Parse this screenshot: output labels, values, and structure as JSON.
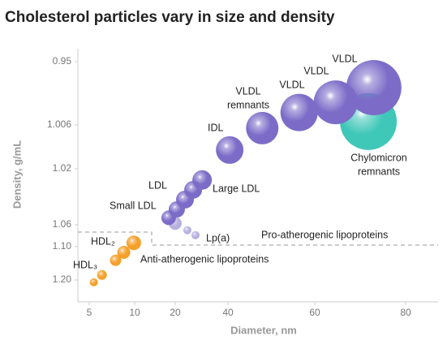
{
  "chart_data": {
    "type": "bubble",
    "title": "Cholesterol particles vary in size and density",
    "x_label": "Diameter, nm",
    "y_label": "Density, g/mL",
    "xlim": [
      3.5,
      86
    ],
    "ylim": [
      1.25,
      0.93
    ],
    "xticks": [
      5,
      10,
      20,
      40,
      60,
      80
    ],
    "yticks": [
      0.95,
      1.006,
      1.02,
      1.06,
      {
        "value": 1.1,
        "label": "1.10"
      },
      {
        "value": 1.2,
        "label": "1.20"
      }
    ],
    "series": [
      {
        "color": "#3fc7b8",
        "x": [
          71.8
        ],
        "values": [
          1.003
        ],
        "sizes": [
          35
        ]
      },
      {
        "color": "#f5a02a",
        "x": [
          5.5,
          6.4,
          7.9,
          8.8,
          9.9
        ],
        "values": [
          1.207,
          1.185,
          1.141,
          1.117,
          1.093
        ],
        "sizes": [
          5,
          6,
          7,
          8,
          9
        ]
      },
      {
        "color": "#b6b0e0",
        "x": [
          20,
          24.6,
          27.7
        ],
        "values": [
          1.059,
          1.07,
          1.079
        ],
        "sizes": [
          8,
          5,
          5
        ]
      },
      {
        "color": "#7c6cc8",
        "x": [
          18.4,
          20.6,
          23.7,
          26.8,
          30.2
        ],
        "values": [
          1.055,
          1.049,
          1.042,
          1.035,
          1.028
        ],
        "sizes": [
          9,
          10,
          11,
          11,
          12
        ]
      },
      {
        "color": "#7c6cc8",
        "x": [
          40.4
        ],
        "values": [
          1.014
        ],
        "sizes": [
          17
        ]
      },
      {
        "color": "#7c6cc8",
        "x": [
          47.9
        ],
        "values": [
          1.007
        ],
        "sizes": [
          20
        ]
      },
      {
        "color": "#7c6cc8",
        "x": [
          56.4,
          64.6,
          73
        ],
        "values": [
          0.995,
          0.986,
          0.973
        ],
        "sizes": [
          23,
          27,
          34
        ]
      }
    ],
    "annotations": [
      [
        "HDL₃"
      ],
      [
        "HDL₂"
      ],
      [
        "Small LDL"
      ],
      [
        "LDL"
      ],
      [
        "Large LDL"
      ],
      [
        "Lp(a)"
      ],
      [
        "IDL"
      ],
      [
        "VLDL",
        "remnants"
      ],
      [
        "VLDL"
      ],
      [
        "VLDL"
      ],
      [
        "VLDL"
      ],
      [
        "Chylomicron",
        "remnants"
      ],
      [
        "Pro-atherogenic lipoproteins"
      ],
      [
        "Anti-atherogenic lipoproteins"
      ]
    ]
  }
}
